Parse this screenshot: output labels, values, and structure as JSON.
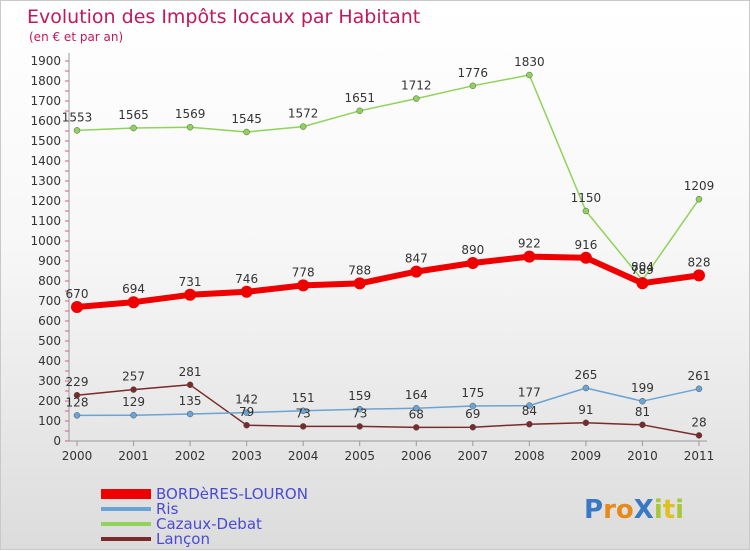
{
  "chart_data": {
    "type": "line",
    "title": "Evolution des Impôts locaux par Habitant",
    "subtitle": "(en € et par an)",
    "x": [
      "2000",
      "2001",
      "2002",
      "2003",
      "2004",
      "2005",
      "2006",
      "2007",
      "2008",
      "2009",
      "2010",
      "2011"
    ],
    "yticks": [
      0,
      100,
      200,
      300,
      400,
      500,
      600,
      700,
      800,
      900,
      1000,
      1100,
      1200,
      1300,
      1400,
      1500,
      1600,
      1700,
      1800,
      1900
    ],
    "ylim": [
      0,
      1900
    ],
    "series": [
      {
        "name": "Cazaux-Debat",
        "color": "#8fd35a",
        "width": 1.5,
        "values": [
          1553,
          1565,
          1569,
          1545,
          1572,
          1651,
          1712,
          1776,
          1830,
          1150,
          804,
          1209
        ]
      },
      {
        "name": "Lançon",
        "color": "#7a2a2a",
        "width": 1.5,
        "values": [
          229,
          257,
          281,
          79,
          73,
          73,
          68,
          69,
          84,
          91,
          81,
          28
        ]
      },
      {
        "name": "Ris",
        "color": "#6aa3d5",
        "width": 1.5,
        "values": [
          128,
          129,
          135,
          142,
          151,
          159,
          164,
          175,
          177,
          265,
          199,
          261
        ]
      },
      {
        "name": "BORDèRES-LOURON",
        "color": "#ee0000",
        "width": 6,
        "values": [
          670,
          694,
          731,
          746,
          778,
          788,
          847,
          890,
          922,
          916,
          789,
          828
        ]
      }
    ],
    "legend": [
      {
        "name": "BORDèRES-LOURON",
        "color": "#ee0000"
      },
      {
        "name": "Ris",
        "color": "#6aa3d5"
      },
      {
        "name": "Cazaux-Debat",
        "color": "#8fd35a"
      },
      {
        "name": "Lançon",
        "color": "#7a2a2a"
      }
    ],
    "data_labels": [
      {
        "series": 0,
        "labels": [
          "1553",
          "1565",
          "1569",
          "1545",
          "1572",
          "1651",
          "1712",
          "1776",
          "1830",
          "1150",
          "804",
          "1209"
        ]
      },
      {
        "series": 1,
        "labels": [
          "229",
          "257",
          "281",
          "79",
          "73",
          "73",
          "68",
          "69",
          "84",
          "91",
          "81",
          "28"
        ]
      },
      {
        "series": 2,
        "labels": [
          "128",
          "129",
          "135",
          "142",
          "151",
          "159",
          "164",
          "175",
          "177",
          "265",
          "199",
          "261"
        ]
      },
      {
        "series": 3,
        "labels": [
          "670",
          "694",
          "731",
          "746",
          "778",
          "788",
          "847",
          "890",
          "922",
          "916",
          "789",
          "828"
        ]
      }
    ],
    "legend_position": "bottom-left",
    "grid": false
  },
  "logo": {
    "text": "ProXiti",
    "letters": [
      "P",
      "r",
      "o",
      "X",
      "i",
      "t",
      "i"
    ],
    "colors": [
      "#3a78c3",
      "#e88a1a",
      "#e88a1a",
      "#3a78c3",
      "#a8c83a",
      "#e0c020",
      "#a8c83a"
    ]
  }
}
